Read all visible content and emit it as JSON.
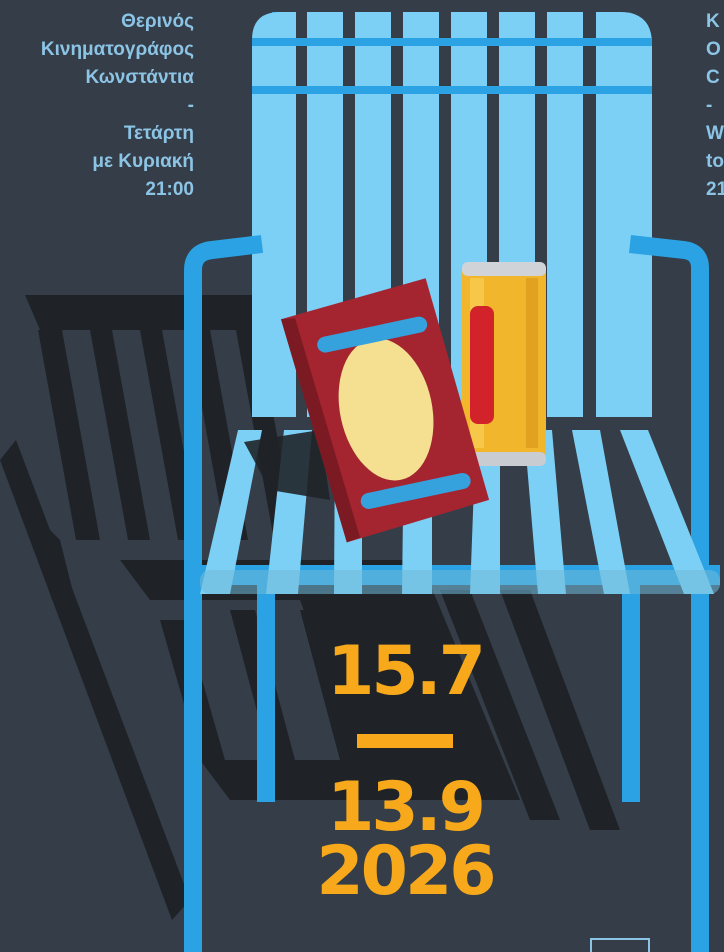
{
  "colors": {
    "background": "#343d48",
    "shadow": "#1f2328",
    "chair_slat": "#7cd0f5",
    "chair_frame": "#2aa2e3",
    "text_blue": "#8cc4e6",
    "date_orange": "#f7a81b",
    "bag_red": "#a42530",
    "can_yellow": "#f1b62c"
  },
  "info_left": {
    "venue_line1": "Θερινός",
    "venue_line2": "Κινηματογράφος",
    "venue_line3": "Κωνστάντια",
    "separator": "-",
    "days_line1": "Τετάρτη",
    "days_line2": "με Κυριακή",
    "time": "21:00"
  },
  "info_right": {
    "line1": "K",
    "line2": "O",
    "line3": "C",
    "separator": "-",
    "line4": "W",
    "line5": "to",
    "line6": "21"
  },
  "dates": {
    "start": "15.7",
    "end": "13.9",
    "year": "2026"
  },
  "icons": {
    "illustration": "chair-with-snacks-illustration",
    "logo": "logo-icon"
  }
}
